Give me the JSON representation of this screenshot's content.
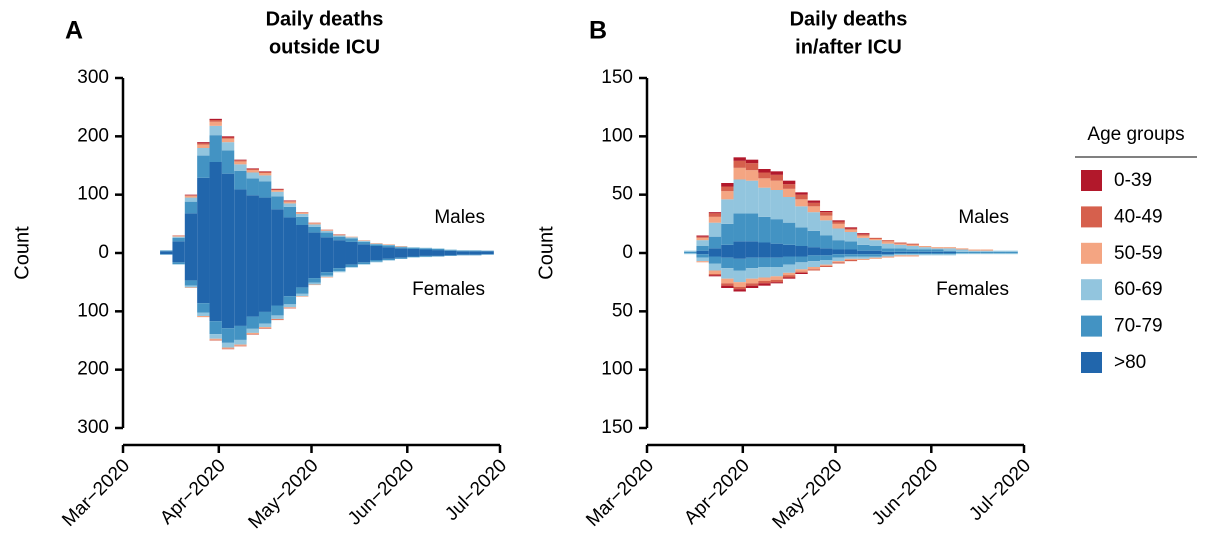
{
  "chart_data": [
    {
      "type": "bar",
      "panel_label": "A",
      "title": "Daily deaths",
      "subtitle": "outside ICU",
      "ylabel": "Count",
      "annotations": [
        "Males",
        "Females"
      ],
      "x": [
        14,
        18,
        22,
        26,
        30,
        34,
        38,
        42,
        46,
        50,
        54,
        58,
        62,
        66,
        70,
        74,
        78,
        82,
        86,
        90,
        94,
        98,
        102,
        106,
        110,
        114,
        118
      ],
      "xlim": [
        0,
        122
      ],
      "xticks": [
        {
          "value": 0,
          "label": "Mar−2020"
        },
        {
          "value": 31,
          "label": "Apr−2020"
        },
        {
          "value": 61,
          "label": "May−2020"
        },
        {
          "value": 92,
          "label": "Jun−2020"
        },
        {
          "value": 122,
          "label": "Jul−2020"
        }
      ],
      "ylim": [
        -300,
        300
      ],
      "yticks": [
        {
          "value": -300,
          "label": "300"
        },
        {
          "value": -200,
          "label": "200"
        },
        {
          "value": -100,
          "label": "100"
        },
        0,
        100,
        200,
        300
      ],
      "males": [
        {
          "color": "#b2182b",
          "values": [
            0,
            0,
            1,
            2,
            2,
            2,
            1,
            1,
            1,
            1,
            1,
            0,
            0,
            0,
            0,
            0,
            0,
            0,
            0,
            0,
            0,
            0,
            0,
            0,
            0,
            0,
            0
          ]
        },
        {
          "color": "#d6604d",
          "values": [
            0,
            1,
            1,
            2,
            3,
            2,
            2,
            2,
            2,
            1,
            1,
            1,
            1,
            1,
            1,
            0,
            0,
            0,
            0,
            0,
            0,
            0,
            0,
            0,
            0,
            0,
            0
          ]
        },
        {
          "color": "#f4a582",
          "values": [
            0,
            1,
            3,
            6,
            7,
            6,
            5,
            4,
            4,
            3,
            3,
            2,
            2,
            1,
            1,
            1,
            1,
            1,
            1,
            1,
            0,
            0,
            0,
            0,
            0,
            0,
            0
          ]
        },
        {
          "color": "#92c5de",
          "values": [
            1,
            2,
            7,
            13,
            16,
            14,
            11,
            10,
            10,
            8,
            6,
            5,
            4,
            3,
            2,
            2,
            2,
            1,
            1,
            1,
            1,
            1,
            1,
            1,
            1,
            1,
            0
          ]
        },
        {
          "color": "#4393c3",
          "values": [
            1,
            6,
            20,
            38,
            46,
            40,
            32,
            29,
            28,
            22,
            18,
            14,
            10,
            8,
            6,
            6,
            4,
            3,
            3,
            2,
            2,
            2,
            2,
            1,
            1,
            1,
            1
          ]
        },
        {
          "color": "#2166ac",
          "values": [
            3,
            20,
            68,
            129,
            156,
            136,
            109,
            99,
            95,
            75,
            61,
            48,
            35,
            27,
            22,
            19,
            15,
            12,
            10,
            8,
            7,
            6,
            5,
            4,
            3,
            3,
            3
          ]
        }
      ],
      "females": [
        {
          "color": "#b2182b",
          "values": [
            0,
            0,
            0,
            0,
            0,
            0,
            0,
            0,
            0,
            0,
            0,
            0,
            0,
            0,
            0,
            0,
            0,
            0,
            0,
            0,
            0,
            0,
            0,
            0,
            0,
            0,
            0
          ]
        },
        {
          "color": "#d6604d",
          "values": [
            0,
            0,
            0,
            0,
            -1,
            -1,
            -1,
            -1,
            -1,
            -1,
            -1,
            0,
            0,
            0,
            0,
            0,
            0,
            0,
            0,
            0,
            0,
            0,
            0,
            0,
            0,
            0,
            0
          ]
        },
        {
          "color": "#f4a582",
          "values": [
            0,
            0,
            -1,
            -2,
            -2,
            -2,
            -2,
            -2,
            -2,
            -1,
            -1,
            -1,
            -1,
            -1,
            0,
            0,
            0,
            0,
            0,
            0,
            0,
            0,
            0,
            0,
            0,
            0,
            0
          ]
        },
        {
          "color": "#92c5de",
          "values": [
            0,
            -1,
            -3,
            -6,
            -8,
            -8,
            -8,
            -7,
            -6,
            -6,
            -5,
            -4,
            -3,
            -2,
            -2,
            -1,
            -1,
            -1,
            -1,
            0,
            -1,
            -1,
            0,
            0,
            0,
            0,
            0
          ]
        },
        {
          "color": "#4393c3",
          "values": [
            -1,
            -3,
            -9,
            -16,
            -22,
            -25,
            -24,
            -21,
            -20,
            -17,
            -14,
            -11,
            -8,
            -6,
            -5,
            -4,
            -3,
            -3,
            -2,
            -2,
            -1,
            -1,
            -1,
            -1,
            -1,
            -1,
            -1
          ]
        },
        {
          "color": "#2166ac",
          "values": [
            -2,
            -16,
            -47,
            -86,
            -117,
            -129,
            -125,
            -109,
            -101,
            -90,
            -74,
            -59,
            -43,
            -33,
            -26,
            -20,
            -16,
            -12,
            -10,
            -8,
            -6,
            -5,
            -5,
            -4,
            -3,
            -3,
            -2
          ]
        }
      ]
    },
    {
      "type": "bar",
      "panel_label": "B",
      "title": "Daily deaths",
      "subtitle": "in/after ICU",
      "ylabel": "Count",
      "annotations": [
        "Males",
        "Females"
      ],
      "x": [
        14,
        18,
        22,
        26,
        30,
        34,
        38,
        42,
        46,
        50,
        54,
        58,
        62,
        66,
        70,
        74,
        78,
        82,
        86,
        90,
        94,
        98,
        102,
        106,
        110,
        114,
        118
      ],
      "xlim": [
        0,
        122
      ],
      "xticks": [
        {
          "value": 0,
          "label": "Mar−2020"
        },
        {
          "value": 31,
          "label": "Apr−2020"
        },
        {
          "value": 61,
          "label": "May−2020"
        },
        {
          "value": 92,
          "label": "Jun−2020"
        },
        {
          "value": 122,
          "label": "Jul−2020"
        }
      ],
      "ylim": [
        -150,
        150
      ],
      "yticks": [
        {
          "value": -150,
          "label": "150"
        },
        {
          "value": -100,
          "label": "100"
        },
        {
          "value": -50,
          "label": "50"
        },
        0,
        50,
        100,
        150
      ],
      "legend": "right",
      "legend_title": "Age groups",
      "males": [
        {
          "name": "0-39",
          "color": "#b2182b",
          "values": [
            0,
            1,
            1,
            3,
            3,
            3,
            3,
            3,
            3,
            2,
            2,
            1,
            1,
            1,
            1,
            0,
            0,
            0,
            0,
            0,
            0,
            0,
            0,
            0,
            0,
            0,
            0
          ]
        },
        {
          "name": "40-49",
          "color": "#d6604d",
          "values": [
            0,
            1,
            3,
            4,
            6,
            6,
            5,
            5,
            4,
            4,
            3,
            3,
            2,
            1,
            1,
            1,
            1,
            1,
            1,
            0,
            0,
            0,
            0,
            0,
            0,
            0,
            0
          ]
        },
        {
          "name": "50-59",
          "color": "#f4a582",
          "values": [
            0,
            2,
            5,
            7,
            10,
            9,
            8,
            8,
            7,
            6,
            5,
            4,
            4,
            2,
            2,
            1,
            2,
            1,
            1,
            1,
            1,
            1,
            1,
            1,
            1,
            0,
            0
          ]
        },
        {
          "name": "60-69",
          "color": "#92c5de",
          "values": [
            1,
            5,
            12,
            21,
            29,
            28,
            25,
            25,
            22,
            18,
            16,
            13,
            10,
            8,
            6,
            5,
            4,
            3,
            3,
            2,
            1,
            2,
            2,
            1,
            1,
            1,
            1
          ]
        },
        {
          "name": "70-79",
          "color": "#4393c3",
          "values": [
            1,
            4,
            10,
            18,
            24,
            24,
            22,
            21,
            19,
            16,
            14,
            11,
            8,
            7,
            5,
            4,
            3,
            3,
            2,
            2,
            2,
            1,
            1,
            1,
            1,
            1,
            1
          ]
        },
        {
          "name": ">80",
          "color": "#2166ac",
          "values": [
            0,
            2,
            4,
            7,
            10,
            10,
            9,
            8,
            7,
            6,
            5,
            4,
            3,
            3,
            2,
            2,
            1,
            1,
            1,
            1,
            1,
            1,
            0,
            0,
            0,
            0,
            0
          ]
        }
      ],
      "females": [
        {
          "color": "#b2182b",
          "values": [
            0,
            0,
            -1,
            -2,
            -2,
            -2,
            -2,
            -1,
            -1,
            -1,
            0,
            0,
            0,
            0,
            0,
            0,
            0,
            0,
            0,
            0,
            0,
            0,
            0,
            0,
            0,
            0,
            0
          ]
        },
        {
          "color": "#d6604d",
          "values": [
            0,
            0,
            -1,
            -2,
            -2,
            -2,
            -2,
            -2,
            -2,
            -1,
            -1,
            -1,
            -1,
            -1,
            0,
            0,
            0,
            0,
            0,
            0,
            0,
            0,
            0,
            0,
            0,
            0,
            0
          ]
        },
        {
          "color": "#f4a582",
          "values": [
            0,
            -1,
            -3,
            -4,
            -4,
            -4,
            -3,
            -3,
            -2,
            -2,
            -2,
            -1,
            -1,
            -1,
            -1,
            -1,
            -1,
            -1,
            -1,
            0,
            0,
            0,
            0,
            0,
            0,
            0,
            0
          ]
        },
        {
          "color": "#92c5de",
          "values": [
            -1,
            -3,
            -6,
            -9,
            -10,
            -9,
            -9,
            -8,
            -7,
            -6,
            -5,
            -4,
            -3,
            -2,
            -2,
            -1,
            -1,
            -1,
            -1,
            -1,
            -1,
            -1,
            -1,
            -1,
            -1,
            -1,
            -1
          ]
        },
        {
          "color": "#4393c3",
          "values": [
            0,
            -3,
            -6,
            -9,
            -10,
            -9,
            -8,
            -8,
            -7,
            -5,
            -5,
            -4,
            -3,
            -2,
            -2,
            -2,
            -1,
            -1,
            -1,
            -1,
            -1,
            -1,
            0,
            0,
            0,
            0,
            0
          ]
        },
        {
          "color": "#2166ac",
          "values": [
            0,
            -1,
            -3,
            -4,
            -5,
            -4,
            -4,
            -4,
            -3,
            -3,
            -2,
            -2,
            -1,
            -1,
            -1,
            -1,
            -1,
            0,
            0,
            0,
            0,
            0,
            0,
            0,
            0,
            0,
            0
          ]
        }
      ]
    }
  ]
}
